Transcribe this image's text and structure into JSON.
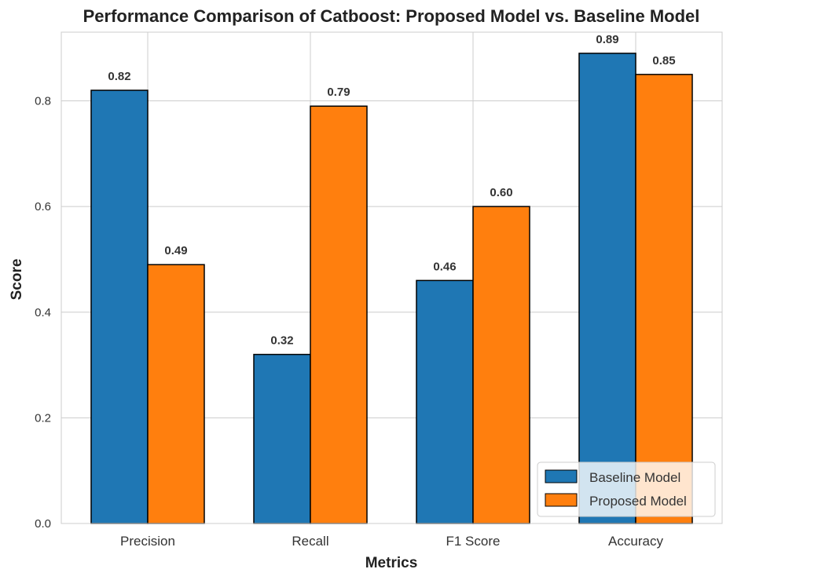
{
  "chart_data": {
    "type": "bar",
    "title": "Performance Comparison of Catboost: Proposed Model vs. Baseline Model",
    "xlabel": "Metrics",
    "ylabel": "Score",
    "categories": [
      "Precision",
      "Recall",
      "F1 Score",
      "Accuracy"
    ],
    "series": [
      {
        "name": "Baseline Model",
        "color": "#1f77b4",
        "values": [
          0.82,
          0.32,
          0.46,
          0.89
        ],
        "labels": [
          "0.82",
          "0.32",
          "0.46",
          "0.89"
        ]
      },
      {
        "name": "Proposed Model",
        "color": "#ff7f0e",
        "values": [
          0.49,
          0.79,
          0.6,
          0.85
        ],
        "labels": [
          "0.49",
          "0.79",
          "0.60",
          "0.85"
        ]
      }
    ],
    "ylim": [
      0,
      0.93
    ],
    "yticks": [
      0.0,
      0.2,
      0.4,
      0.6,
      0.8
    ],
    "ytick_labels": [
      "0.0",
      "0.2",
      "0.4",
      "0.6",
      "0.8"
    ],
    "grid": true,
    "legend_position": "lower-right"
  }
}
